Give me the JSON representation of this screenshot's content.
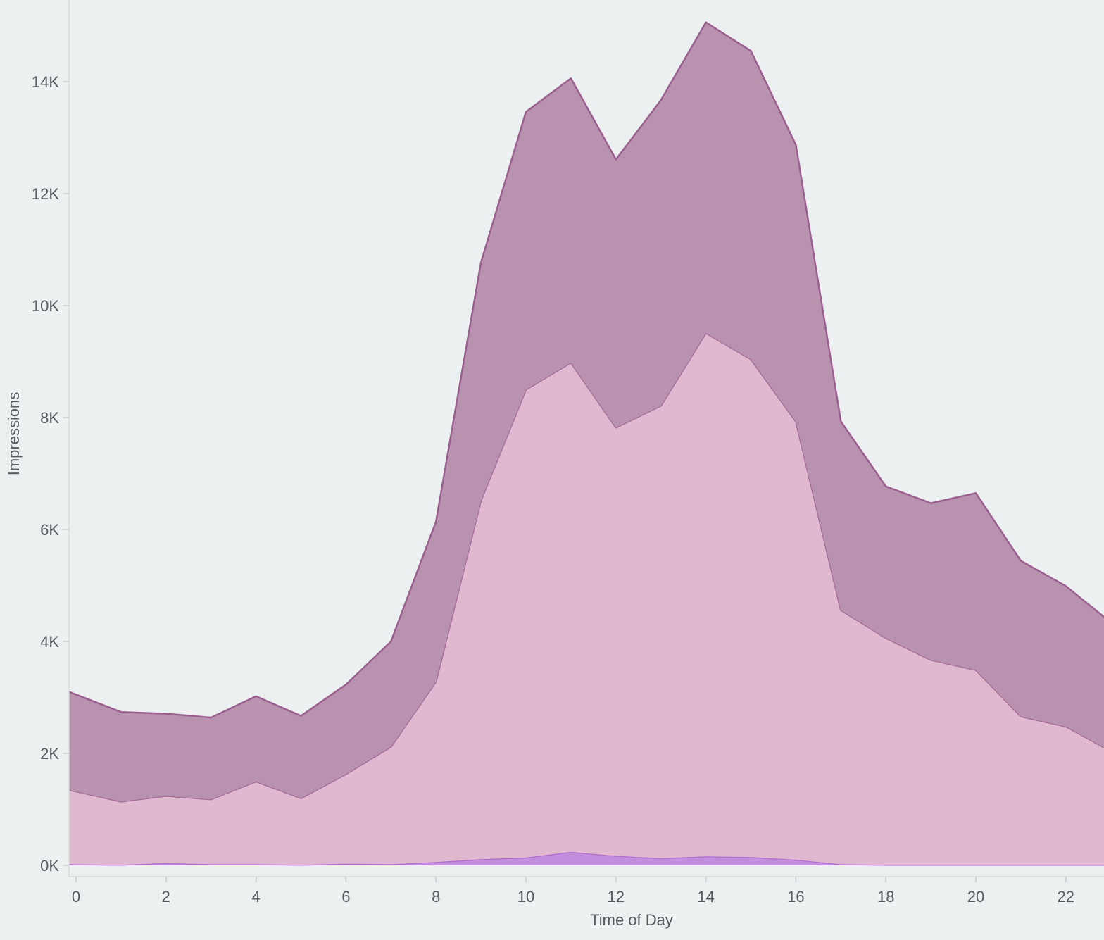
{
  "chart_data": {
    "type": "area",
    "stacked": true,
    "xlabel": "Time of Day",
    "ylabel": "Impressions",
    "x": [
      0,
      1,
      2,
      3,
      4,
      5,
      6,
      7,
      8,
      9,
      10,
      11,
      12,
      13,
      14,
      15,
      16,
      17,
      18,
      19,
      20,
      21,
      22,
      23
    ],
    "x_ticks": [
      0,
      2,
      4,
      6,
      8,
      10,
      12,
      14,
      16,
      18,
      20,
      22
    ],
    "y_ticks": [
      0,
      2000,
      4000,
      6000,
      8000,
      10000,
      12000,
      14000
    ],
    "y_tick_labels": [
      "0K",
      "2K",
      "4K",
      "6K",
      "8K",
      "10K",
      "12K",
      "14K"
    ],
    "xlim": [
      -0.15,
      23
    ],
    "ylim": [
      -200,
      15500
    ],
    "grid": false,
    "legend": "none",
    "series": [
      {
        "color": "#c48ede",
        "stroke": "#b06ccc",
        "values": [
          20,
          10,
          40,
          20,
          20,
          10,
          30,
          20,
          60,
          110,
          140,
          240,
          170,
          130,
          160,
          150,
          100,
          20,
          10,
          10,
          10,
          10,
          10,
          10
        ]
      },
      {
        "color": "#e0b8d0",
        "stroke": "#a56a98",
        "values": [
          1330,
          1130,
          1200,
          1160,
          1480,
          1190,
          1600,
          2100,
          3220,
          6410,
          8360,
          8740,
          7650,
          8080,
          9350,
          8890,
          7830,
          4540,
          4050,
          3660,
          3480,
          2650,
          2470,
          2030
        ]
      },
      {
        "color": "#b992b0",
        "stroke": "#9a5f8e",
        "values": [
          1750,
          1600,
          1470,
          1460,
          1520,
          1470,
          1600,
          1880,
          2860,
          4250,
          4960,
          5080,
          4790,
          5460,
          5550,
          5510,
          4940,
          3370,
          2710,
          2800,
          3160,
          2780,
          2510,
          2300
        ]
      }
    ]
  }
}
